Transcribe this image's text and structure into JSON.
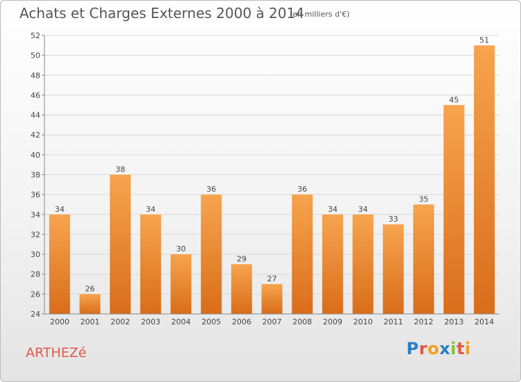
{
  "header": {
    "title": "Achats et Charges Externes 2000 à 2014",
    "subtitle": "(en milliers d'€)"
  },
  "footer": {
    "place": "ARTHEZé",
    "logo_text": "Proxiti",
    "logo_colors": [
      "#2a7fc4",
      "#e0584a",
      "#f0a020",
      "#2a7fc4",
      "#8bbf3c",
      "#e0584a",
      "#f0a020"
    ]
  },
  "colors": {
    "bar_top": "#f7a44e",
    "bar_bottom": "#d96d1a",
    "grid": "#d8d8d8",
    "axis": "#888888",
    "text": "#444444"
  },
  "chart_data": {
    "type": "bar",
    "title": "Achats et Charges Externes 2000 à 2014",
    "subtitle": "(en milliers d'€)",
    "categories": [
      "2000",
      "2001",
      "2002",
      "2003",
      "2004",
      "2005",
      "2006",
      "2007",
      "2008",
      "2009",
      "2010",
      "2011",
      "2012",
      "2013",
      "2014"
    ],
    "values": [
      34,
      26,
      38,
      34,
      30,
      36,
      29,
      27,
      36,
      34,
      34,
      33,
      35,
      45,
      51
    ],
    "ylim": [
      24,
      52
    ],
    "yticks": [
      24,
      26,
      28,
      30,
      32,
      34,
      36,
      38,
      40,
      42,
      44,
      46,
      48,
      50,
      52
    ],
    "grid": true,
    "legend": false
  }
}
